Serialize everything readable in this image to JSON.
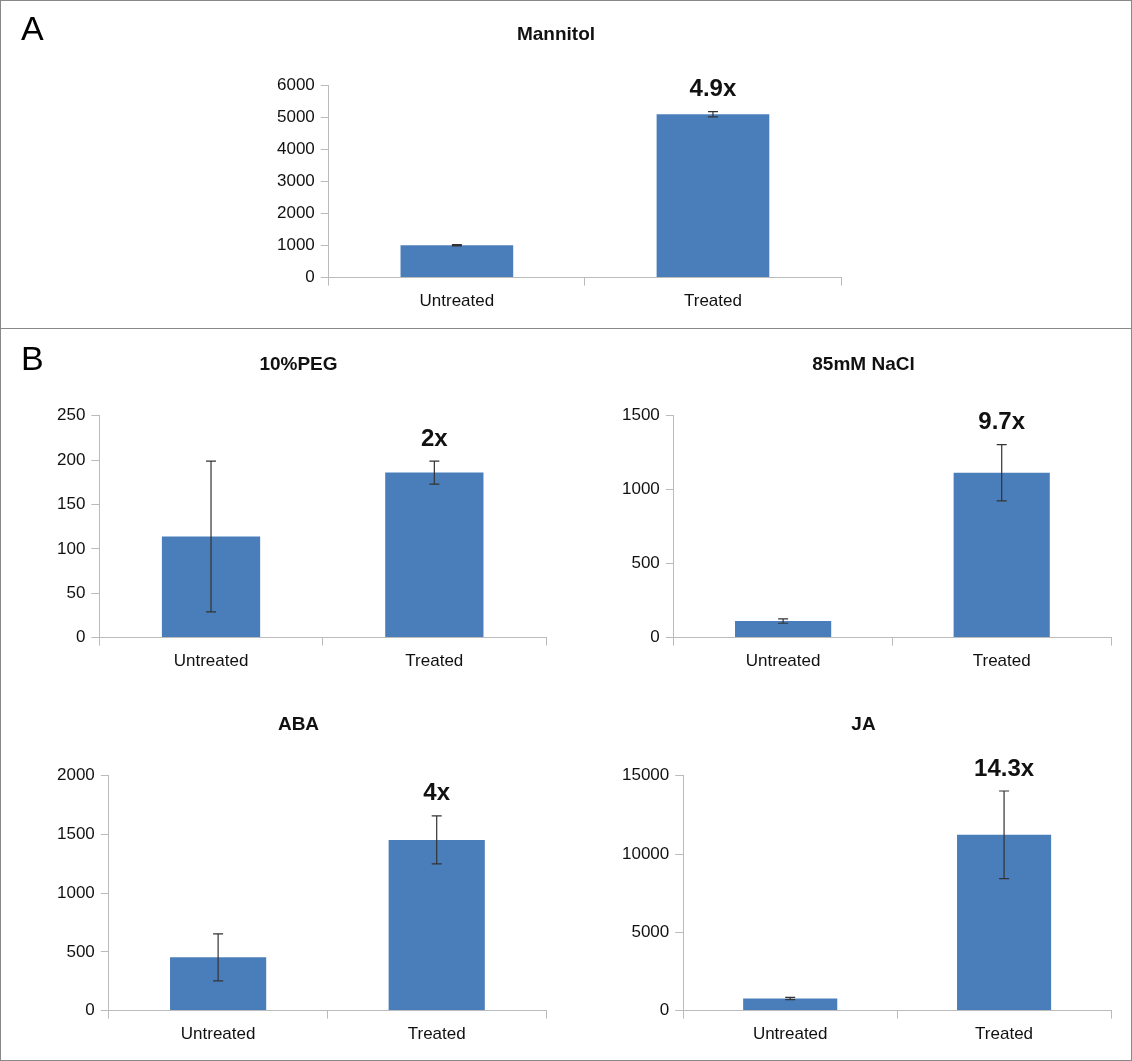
{
  "chart_data": [
    {
      "type": "bar",
      "title": "Mannitol",
      "categories": [
        "Untreated",
        "Treated"
      ],
      "values": [
        1010,
        5110
      ],
      "errors": [
        20,
        80
      ],
      "color": "#4a7ebb",
      "ylim": [
        0,
        6000
      ],
      "yticks": [
        0,
        1000,
        2000,
        3000,
        4000,
        5000,
        6000
      ],
      "annotations": [
        "A",
        {
          "text": "4.9x",
          "x": "Treated",
          "y": 5190
        }
      ]
    },
    {
      "type": "bar",
      "title": "10%PEG",
      "categories": [
        "Untreated",
        "Treated"
      ],
      "values": [
        114,
        186
      ],
      "errors": [
        85,
        13
      ],
      "color": "#4a7ebb",
      "ylim": [
        0,
        250
      ],
      "yticks": [
        0,
        50,
        100,
        150,
        200,
        250
      ],
      "annotations": [
        "B",
        {
          "text": "2x",
          "x": "Treated",
          "y": 199
        }
      ]
    },
    {
      "type": "bar",
      "title": "85mM NaCl",
      "categories": [
        "Untreated",
        "Treated"
      ],
      "values": [
        112,
        1115
      ],
      "errors": [
        15,
        190
      ],
      "color": "#4a7ebb",
      "ylim": [
        0,
        1500
      ],
      "yticks": [
        0,
        500,
        1000,
        1500
      ],
      "annotations": [
        {
          "text": "9.7x",
          "x": "Treated",
          "y": 1305
        }
      ]
    },
    {
      "type": "bar",
      "title": "ABA",
      "categories": [
        "Untreated",
        "Treated"
      ],
      "values": [
        454,
        1454
      ],
      "errors": [
        200,
        205
      ],
      "color": "#4a7ebb",
      "ylim": [
        0,
        2000
      ],
      "yticks": [
        0,
        500,
        1000,
        1500,
        2000
      ],
      "annotations": [
        {
          "text": "4x",
          "x": "Treated",
          "y": 1659
        }
      ]
    },
    {
      "type": "bar",
      "title": "JA",
      "categories": [
        "Untreated",
        "Treated"
      ],
      "values": [
        775,
        11230
      ],
      "errors": [
        70,
        2800
      ],
      "color": "#4a7ebb",
      "ylim": [
        0,
        15000
      ],
      "yticks": [
        0,
        5000,
        10000,
        15000
      ],
      "annotations": [
        {
          "text": "14.3x",
          "x": "Treated",
          "y": 14030
        }
      ]
    }
  ]
}
